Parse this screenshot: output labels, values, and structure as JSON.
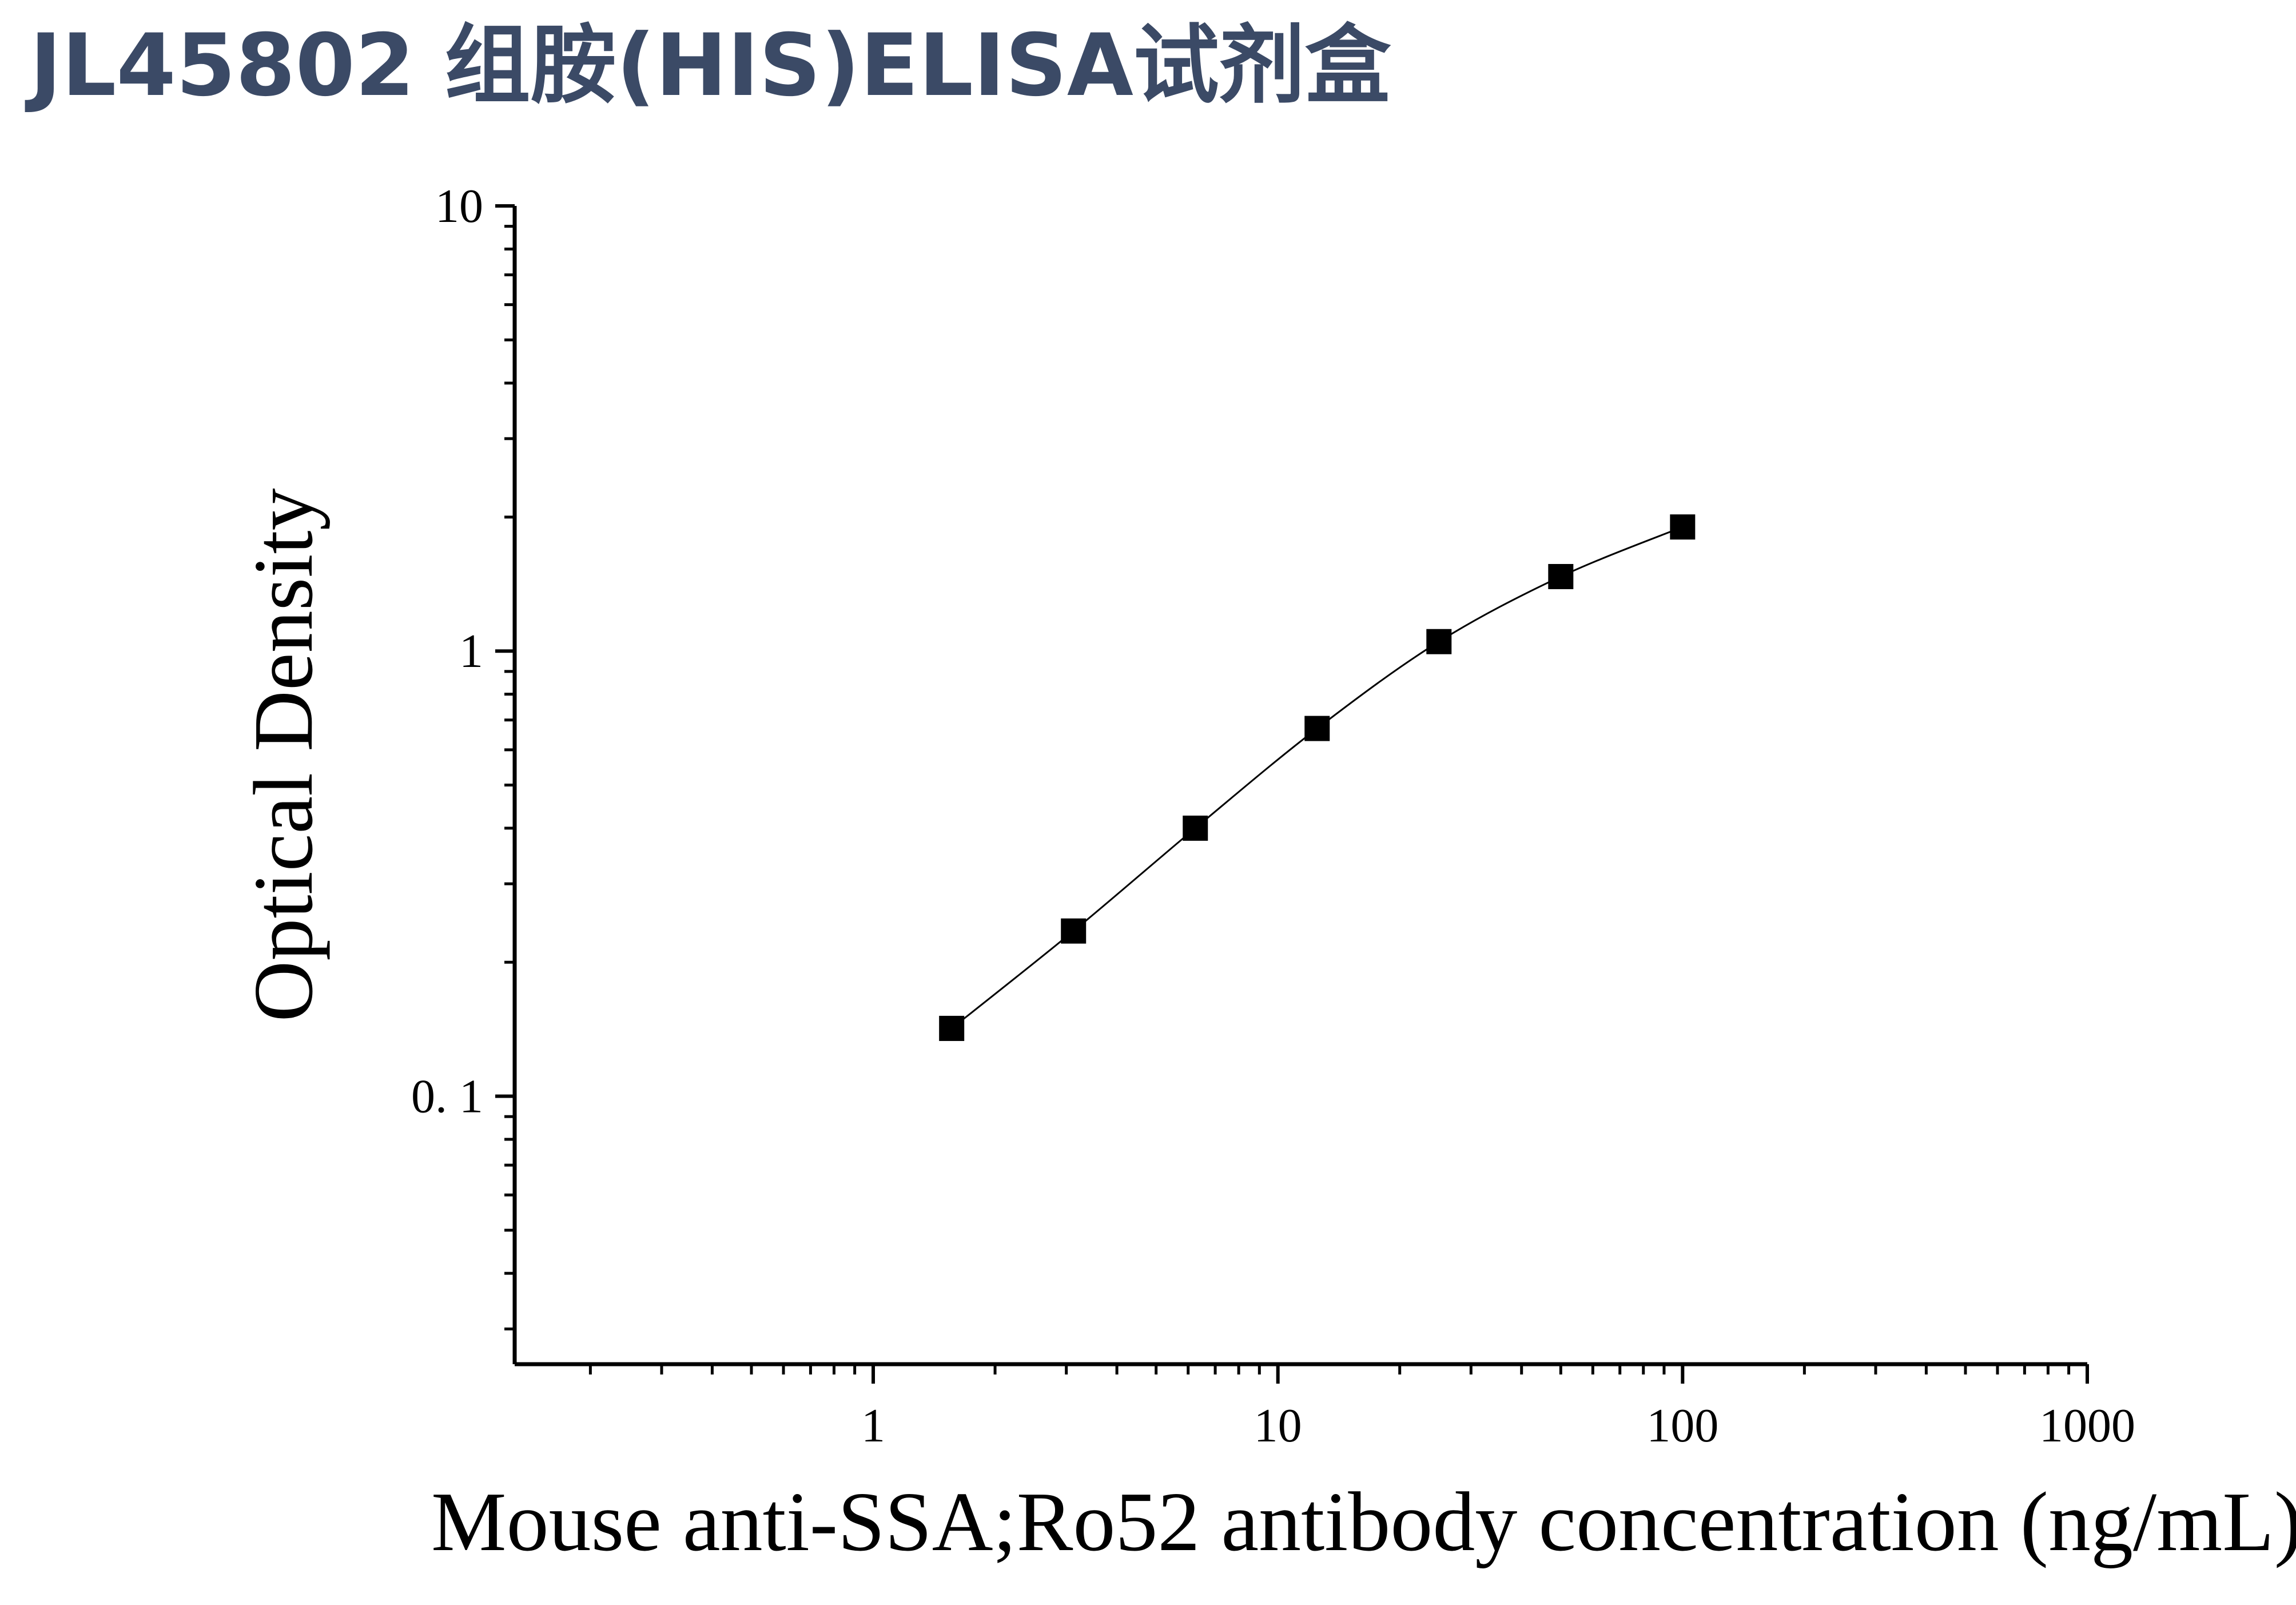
{
  "page": {
    "title": "JL45802 组胺(HIS)ELISA试剂盒"
  },
  "chart_data": {
    "type": "scatter",
    "title": "JL45802 组胺(HIS)ELISA试剂盒",
    "xlabel": "Mouse anti-SSA;Ro52 antibody concentration (ng/mL)",
    "ylabel": "Optical Density",
    "x_scale": "log",
    "y_scale": "log",
    "xlim": [
      0.13,
      1000
    ],
    "ylim": [
      0.025,
      10
    ],
    "x_ticks": [
      1,
      10,
      100,
      1000
    ],
    "x_tick_labels": [
      "1",
      "10",
      "100",
      "1000"
    ],
    "y_ticks": [
      0.1,
      1,
      10
    ],
    "y_tick_labels": [
      "0. 1",
      "1",
      "10"
    ],
    "grid": false,
    "fit_curve": true,
    "series": [
      {
        "x": [
          1.5625,
          3.125,
          6.25,
          12.5,
          25,
          50,
          100
        ],
        "y": [
          0.142,
          0.235,
          0.4,
          0.67,
          1.05,
          1.47,
          1.9
        ]
      }
    ],
    "colors": {
      "marker": "#000000",
      "curve": "#000000",
      "title": "#3b4a66"
    }
  }
}
